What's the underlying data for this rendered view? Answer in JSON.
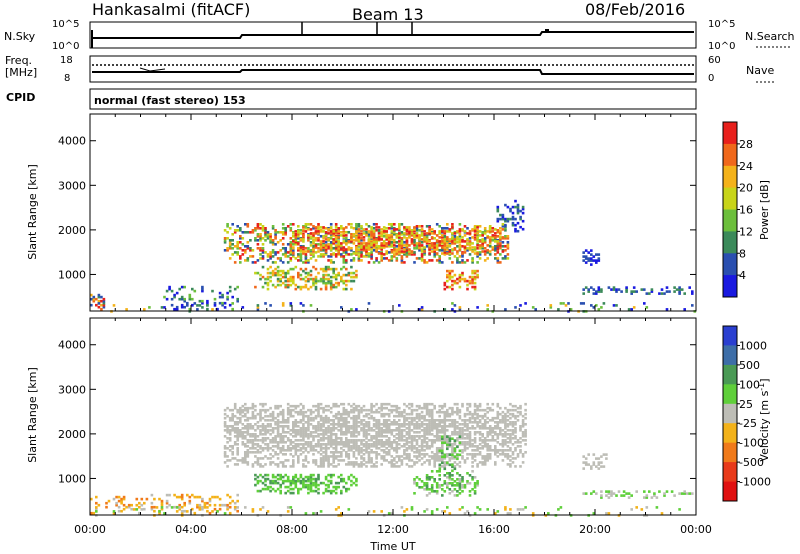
{
  "header": {
    "station": "Hankasalmi (fitACF)",
    "beam": "Beam 13",
    "date": "08/Feb/2016"
  },
  "noise_panel": {
    "left_label": "N.Sky",
    "left_ticks": [
      "10^5",
      "10^0"
    ],
    "right_ticks": [
      "10^5",
      "10^0"
    ],
    "right_label": "N.Search"
  },
  "freq_panel": {
    "left_label_line1": "Freq.",
    "left_label_line2": "[MHz]",
    "left_ticks": [
      "18",
      "8"
    ],
    "right_ticks": [
      "60",
      "0"
    ],
    "right_label": "Nave"
  },
  "cpid_panel": {
    "left_label": "CPID",
    "mode_text": "normal (fast stereo) 153"
  },
  "chart_data": [
    {
      "type": "heatmap",
      "name": "power",
      "ylabel": "Slant Range [km]",
      "yticks": [
        "4000",
        "3000",
        "2000",
        "1000"
      ],
      "ytick_values": [
        4000,
        3000,
        2000,
        1000
      ],
      "ylim": [
        180,
        4600
      ],
      "xlim_hours": [
        0,
        24
      ],
      "colorbar_label": "Power [dB]",
      "colorbar_ticks": [
        "28",
        "24",
        "20",
        "16",
        "12",
        "8",
        "4"
      ],
      "colorbar_colors": [
        "#e8201c",
        "#f0681b",
        "#f4b21a",
        "#c8d419",
        "#6cbf3c",
        "#3b8a5a",
        "#2a4fb0",
        "#1a1ae0"
      ],
      "blobs": [
        {
          "t0": 5.3,
          "t1": 16.5,
          "r0": 1300,
          "r1": 2200,
          "dens": 0.55,
          "c": [
            0,
            1,
            2,
            3,
            4,
            5,
            6
          ]
        },
        {
          "t0": 8.0,
          "t1": 16.3,
          "r0": 1500,
          "r1": 2100,
          "dens": 0.5,
          "c": [
            0,
            1,
            2,
            3
          ]
        },
        {
          "t0": 6.5,
          "t1": 10.5,
          "r0": 700,
          "r1": 1200,
          "dens": 0.5,
          "c": [
            1,
            2,
            3,
            4,
            5
          ]
        },
        {
          "t0": 14.0,
          "t1": 15.4,
          "r0": 700,
          "r1": 1150,
          "dens": 0.5,
          "c": [
            0,
            1,
            2,
            3
          ]
        },
        {
          "t0": 16.0,
          "t1": 17.2,
          "r0": 2000,
          "r1": 2700,
          "dens": 0.35,
          "c": [
            5,
            6,
            7
          ]
        },
        {
          "t0": 19.5,
          "t1": 20.2,
          "r0": 1250,
          "r1": 1600,
          "dens": 0.3,
          "c": [
            6,
            7
          ]
        },
        {
          "t0": 0.0,
          "t1": 0.6,
          "r0": 250,
          "r1": 600,
          "dens": 0.5,
          "c": [
            0,
            1,
            2,
            5,
            6
          ]
        },
        {
          "t0": 2.8,
          "t1": 5.8,
          "r0": 250,
          "r1": 750,
          "dens": 0.25,
          "c": [
            4,
            5,
            6,
            7
          ]
        },
        {
          "t0": 19.5,
          "t1": 23.9,
          "r0": 600,
          "r1": 750,
          "dens": 0.35,
          "c": [
            5,
            6,
            7
          ]
        },
        {
          "t0": 0.0,
          "t1": 24.0,
          "r0": 200,
          "r1": 400,
          "dens": 0.12,
          "c": [
            2,
            4,
            5,
            6,
            7
          ]
        }
      ]
    },
    {
      "type": "heatmap",
      "name": "velocity",
      "ylabel": "Slant Range [km]",
      "yticks": [
        "4000",
        "3000",
        "2000",
        "1000"
      ],
      "ytick_values": [
        4000,
        3000,
        2000,
        1000
      ],
      "ylim": [
        180,
        4600
      ],
      "xlim_hours": [
        0,
        24
      ],
      "colorbar_label": "Velocity [m s^-1]",
      "colorbar_ticks": [
        "1000",
        "500",
        "100",
        "25",
        "-25",
        "-100",
        "-500",
        "-1000"
      ],
      "colorbar_colors": [
        "#2a3fd0",
        "#3d6ea8",
        "#4a9a55",
        "#5fcf3a",
        "#bdbdb6",
        "#f3b21a",
        "#f07a1a",
        "#e83a1a",
        "#e01010"
      ],
      "blobs": [
        {
          "t0": 5.3,
          "t1": 17.2,
          "r0": 1300,
          "r1": 2700,
          "dens": 0.7,
          "c": [
            4
          ]
        },
        {
          "t0": 6.5,
          "t1": 10.5,
          "r0": 700,
          "r1": 1150,
          "dens": 0.55,
          "c": [
            3,
            3,
            2
          ]
        },
        {
          "t0": 12.8,
          "t1": 15.3,
          "r0": 650,
          "r1": 1200,
          "dens": 0.5,
          "c": [
            3,
            3,
            2,
            4
          ]
        },
        {
          "t0": 13.8,
          "t1": 14.6,
          "r0": 1200,
          "r1": 2000,
          "dens": 0.3,
          "c": [
            2,
            3
          ]
        },
        {
          "t0": 0.0,
          "t1": 5.8,
          "r0": 250,
          "r1": 700,
          "dens": 0.3,
          "c": [
            5,
            6,
            5,
            4
          ]
        },
        {
          "t0": 19.5,
          "t1": 20.5,
          "r0": 1250,
          "r1": 1600,
          "dens": 0.3,
          "c": [
            4
          ]
        },
        {
          "t0": 19.5,
          "t1": 23.9,
          "r0": 600,
          "r1": 750,
          "dens": 0.35,
          "c": [
            3,
            4
          ]
        },
        {
          "t0": 0.0,
          "t1": 24.0,
          "r0": 200,
          "r1": 400,
          "dens": 0.12,
          "c": [
            3,
            4,
            5
          ]
        }
      ]
    }
  ],
  "x_axis": {
    "ticks": [
      "00:00",
      "04:00",
      "08:00",
      "12:00",
      "16:00",
      "20:00",
      "00:00"
    ],
    "label": "Time UT"
  }
}
